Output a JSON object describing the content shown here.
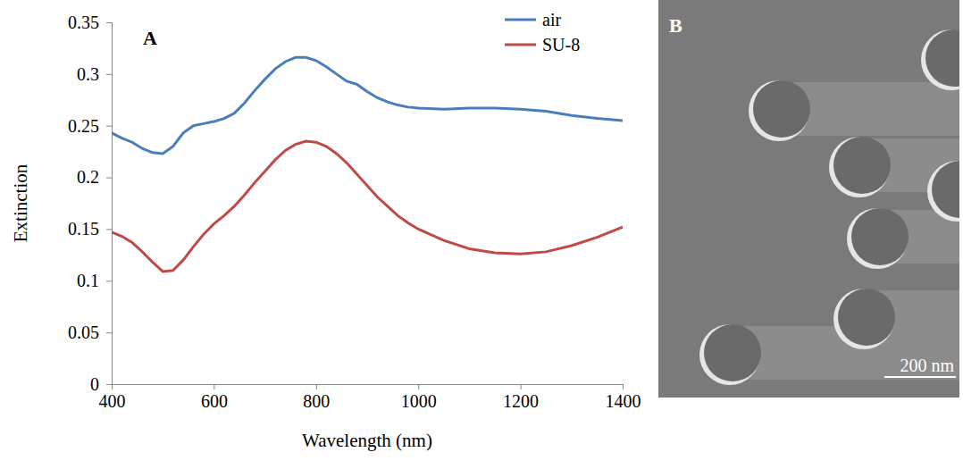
{
  "chart_data": {
    "type": "line",
    "annotations": [
      "A"
    ],
    "x_label": "Wavelength (nm)",
    "y_label": "Extinction",
    "x": [
      400,
      420,
      440,
      460,
      480,
      500,
      520,
      540,
      560,
      580,
      600,
      620,
      640,
      660,
      680,
      700,
      720,
      740,
      760,
      780,
      800,
      820,
      840,
      860,
      880,
      900,
      920,
      940,
      960,
      980,
      1000,
      1050,
      1100,
      1150,
      1200,
      1250,
      1300,
      1350,
      1400
    ],
    "series": [
      {
        "name": "air",
        "color": "#4a7ebb",
        "values": [
          0.243,
          0.238,
          0.234,
          0.228,
          0.224,
          0.223,
          0.23,
          0.243,
          0.25,
          0.252,
          0.254,
          0.257,
          0.262,
          0.272,
          0.284,
          0.295,
          0.305,
          0.312,
          0.316,
          0.316,
          0.313,
          0.307,
          0.3,
          0.293,
          0.29,
          0.283,
          0.277,
          0.273,
          0.27,
          0.268,
          0.267,
          0.266,
          0.267,
          0.267,
          0.266,
          0.264,
          0.26,
          0.257,
          0.255
        ]
      },
      {
        "name": "SU-8",
        "color": "#be4b48",
        "values": [
          0.147,
          0.143,
          0.137,
          0.128,
          0.118,
          0.109,
          0.11,
          0.12,
          0.133,
          0.145,
          0.155,
          0.163,
          0.172,
          0.183,
          0.195,
          0.206,
          0.217,
          0.226,
          0.232,
          0.235,
          0.234,
          0.23,
          0.223,
          0.214,
          0.203,
          0.192,
          0.181,
          0.172,
          0.163,
          0.156,
          0.15,
          0.139,
          0.131,
          0.127,
          0.126,
          0.128,
          0.134,
          0.142,
          0.152
        ]
      }
    ],
    "xlim": [
      400,
      1400
    ],
    "xticks": [
      400,
      600,
      800,
      1000,
      1200,
      1400
    ],
    "ylim": [
      0,
      0.35
    ],
    "yticks": [
      0,
      0.05,
      0.1,
      0.15,
      0.2,
      0.25,
      0.3,
      0.35
    ],
    "grid": false,
    "legend": "top-right"
  },
  "image": {
    "panel": "B",
    "scale_bar": "200 nm"
  }
}
